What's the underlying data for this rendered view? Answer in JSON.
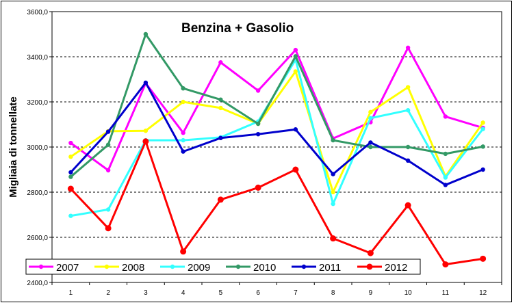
{
  "chart_data": {
    "type": "line",
    "title": "Benzina + Gasolio",
    "xlabel": "",
    "ylabel": "Migliaia di tonnellate",
    "categories": [
      "1",
      "2",
      "3",
      "4",
      "5",
      "6",
      "7",
      "8",
      "9",
      "10",
      "11",
      "12"
    ],
    "ylim": [
      2400,
      3600
    ],
    "ytick_labels": [
      "2400,0",
      "2600,0",
      "2800,0",
      "3000,0",
      "3200,0",
      "3400,0",
      "3600,0"
    ],
    "grid": "horizontal dashed",
    "legend_position": "bottom",
    "series": [
      {
        "name": "2007",
        "color": "#ff00ff",
        "values": [
          3018,
          2897,
          3283,
          3063,
          3375,
          3250,
          3430,
          3038,
          3110,
          3440,
          3135,
          3085
        ]
      },
      {
        "name": "2008",
        "color": "#ffff00",
        "values": [
          2957,
          3070,
          3072,
          3200,
          3173,
          3103,
          3335,
          2800,
          3155,
          3265,
          2870,
          3108
        ]
      },
      {
        "name": "2009",
        "color": "#33ffff",
        "values": [
          2695,
          2723,
          3030,
          3030,
          3043,
          3113,
          3387,
          2748,
          3128,
          3163,
          2865,
          3080
        ]
      },
      {
        "name": "2010",
        "color": "#339966",
        "values": [
          2868,
          3010,
          3500,
          3260,
          3210,
          3103,
          3402,
          3030,
          3000,
          3000,
          2970,
          3002
        ]
      },
      {
        "name": "2011",
        "color": "#0000cc",
        "values": [
          2888,
          3068,
          3285,
          2980,
          3040,
          3057,
          3078,
          2880,
          3020,
          2940,
          2832,
          2900
        ]
      },
      {
        "name": "2012",
        "color": "#ff0000",
        "values": [
          2815,
          2640,
          3025,
          2537,
          2767,
          2820,
          2900,
          2595,
          2530,
          2742,
          2480,
          2505
        ]
      }
    ]
  }
}
